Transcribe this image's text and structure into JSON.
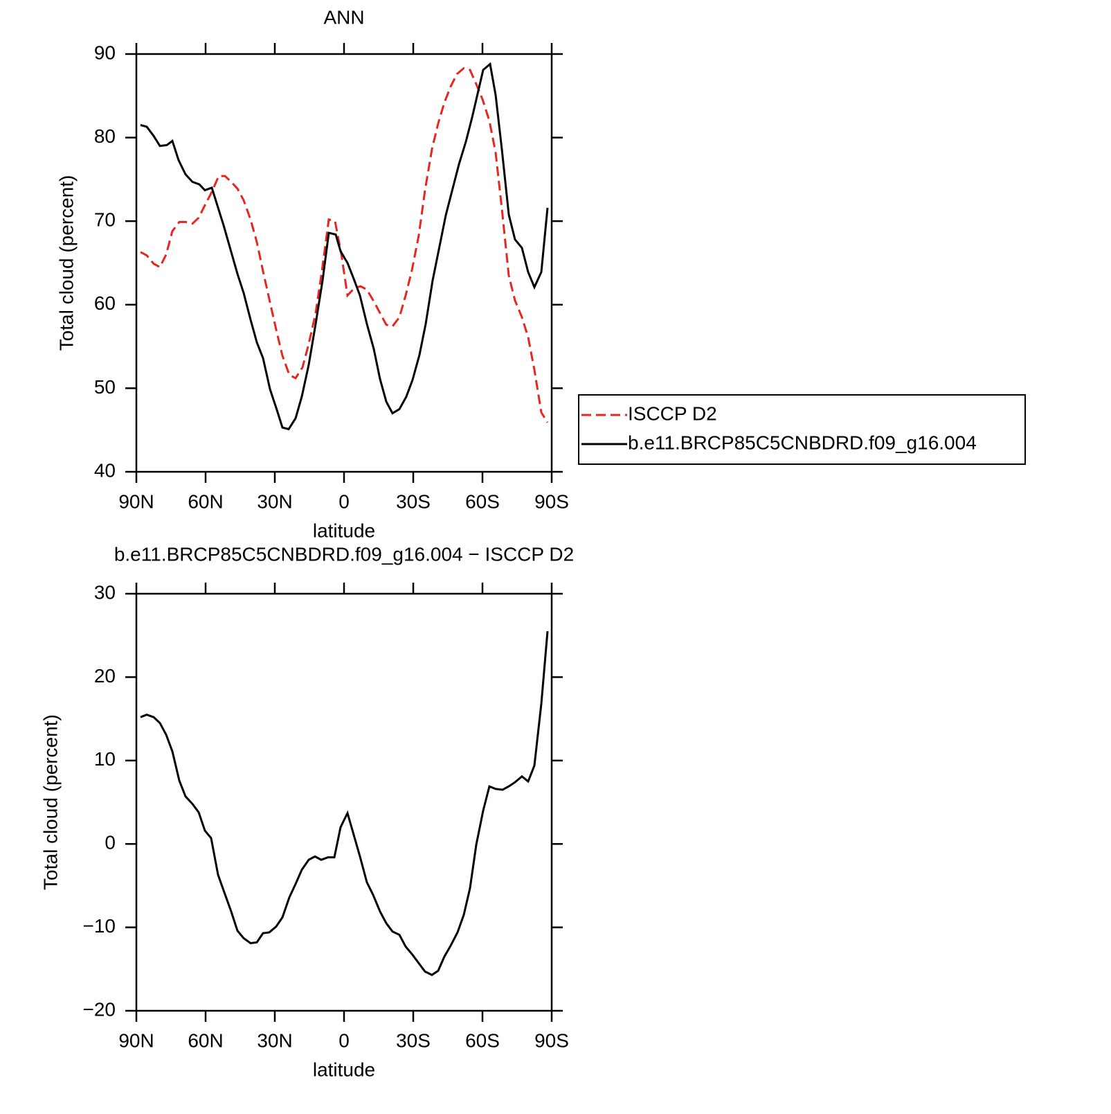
{
  "chart_data": [
    {
      "type": "line",
      "title": "ANN",
      "xlabel": "latitude",
      "ylabel": "Total cloud (percent)",
      "xlim": [
        90,
        -90
      ],
      "xticks": [
        {
          "value": 90,
          "label": "90N"
        },
        {
          "value": 60,
          "label": "60N"
        },
        {
          "value": 30,
          "label": "30N"
        },
        0,
        {
          "value": -30,
          "label": "30S"
        },
        {
          "value": -60,
          "label": "60S"
        },
        {
          "value": -90,
          "label": "90S"
        }
      ],
      "ylim": [
        40,
        90
      ],
      "yticks": [
        40,
        50,
        60,
        70,
        80,
        90
      ],
      "legend": "right",
      "series": [
        {
          "name": "ISCCP D2",
          "color": "#e8251f",
          "linestyle": "dashed",
          "x": [
            88.2,
            85.5,
            82.5,
            79.8,
            77.1,
            74.4,
            71.4,
            68.7,
            65.7,
            63,
            60.3,
            57.3,
            54.3,
            51.6,
            48.9,
            46.2,
            43.5,
            40.5,
            37.8,
            35.1,
            32.1,
            29.4,
            26.7,
            23.7,
            21,
            18,
            15.3,
            12.3,
            9.6,
            6.6,
            3.9,
            1.2,
            -1.5,
            -4.5,
            -7.2,
            -9.9,
            -12.9,
            -15.6,
            -18.3,
            -21,
            -24,
            -26.7,
            -29.4,
            -32.4,
            -35.1,
            -38.1,
            -40.8,
            -43.5,
            -46.2,
            -48.9,
            -51.9,
            -54.6,
            -57.3,
            -60,
            -63,
            -65.7,
            -68.4,
            -71.4,
            -74.1,
            -77.1,
            -79.8,
            -82.5,
            -85.5,
            -88.2
          ],
          "values": [
            66.3,
            65.9,
            64.9,
            64.5,
            66.0,
            68.8,
            69.9,
            69.9,
            69.7,
            70.4,
            71.9,
            73.5,
            75.4,
            75.4,
            74.7,
            73.9,
            72.5,
            70.2,
            67.5,
            64.0,
            60.3,
            57.0,
            53.9,
            51.6,
            51.2,
            52.5,
            55.3,
            59.0,
            64.0,
            70.2,
            70.0,
            66.1,
            61.1,
            62.0,
            62.2,
            61.8,
            60.4,
            59.0,
            57.6,
            57.4,
            58.5,
            61.1,
            64.1,
            68.3,
            73.7,
            78.6,
            81.7,
            84.2,
            86.1,
            87.6,
            88.3,
            88.1,
            86.4,
            84.6,
            82.0,
            78.2,
            71.5,
            63.5,
            60.5,
            58.5,
            56.1,
            52.2,
            47.1,
            45.9
          ]
        },
        {
          "name": "b.e11.BRCP85C5CNBDRD.f09_g16.004",
          "color": "#000000",
          "linestyle": "solid",
          "x": [
            88.2,
            85.5,
            82.5,
            79.8,
            76.8,
            74.4,
            71.7,
            68.7,
            65.7,
            62.7,
            60.3,
            57.3,
            52.2,
            46.2,
            43.5,
            40.5,
            37.8,
            35.1,
            32.1,
            29.1,
            26.7,
            24,
            21,
            18.3,
            15.3,
            12.3,
            9.3,
            6.6,
            3.6,
            1.5,
            -1.5,
            -4.2,
            -6.9,
            -9.9,
            -12.9,
            -15.6,
            -18.3,
            -21,
            -24,
            -27,
            -29.7,
            -32.7,
            -35.4,
            -38.4,
            -44.1,
            -49.8,
            -52.8,
            -55.5,
            -60.3,
            -63.3,
            -65.7,
            -68.4,
            -71.4,
            -74.1,
            -77.1,
            -79.8,
            -82.5,
            -85.5,
            -88.2
          ],
          "values": [
            81.5,
            81.3,
            80.2,
            79.0,
            79.1,
            79.6,
            77.3,
            75.6,
            74.7,
            74.4,
            73.7,
            74.0,
            69.5,
            63.7,
            61.4,
            58.2,
            55.5,
            53.6,
            49.9,
            47.4,
            45.3,
            45.1,
            46.4,
            49.0,
            52.8,
            57.7,
            62.9,
            68.6,
            68.4,
            66.4,
            65.0,
            63.1,
            61.1,
            57.7,
            54.7,
            51.1,
            48.4,
            47.0,
            47.5,
            49.0,
            51.0,
            54.0,
            57.7,
            62.9,
            70.7,
            76.8,
            79.5,
            82.4,
            88.1,
            88.8,
            85.1,
            78.6,
            70.8,
            67.8,
            66.8,
            63.9,
            62.1,
            63.9,
            71.6
          ]
        }
      ]
    },
    {
      "type": "line",
      "title": "b.e11.BRCP85C5CNBDRD.f09_g16.004 − ISCCP D2",
      "xlabel": "latitude",
      "ylabel": "Total cloud (percent)",
      "xlim": [
        90,
        -90
      ],
      "xticks": [
        {
          "value": 90,
          "label": "90N"
        },
        {
          "value": 60,
          "label": "60N"
        },
        {
          "value": 30,
          "label": "30N"
        },
        0,
        {
          "value": -30,
          "label": "30S"
        },
        {
          "value": -60,
          "label": "60S"
        },
        {
          "value": -90,
          "label": "90S"
        }
      ],
      "ylim": [
        -20,
        30
      ],
      "yticks": [
        {
          "value": -20,
          "label": "−20"
        },
        {
          "value": -10,
          "label": "−10"
        },
        0,
        10,
        20,
        30
      ],
      "series": [
        {
          "color": "#000000",
          "linestyle": "solid",
          "x": [
            88.2,
            85.5,
            82.5,
            79.8,
            77.1,
            74.4,
            71.4,
            68.7,
            65.7,
            63,
            60.3,
            57.6,
            54.6,
            51.9,
            48.9,
            46.2,
            43.5,
            40.5,
            37.8,
            35.1,
            32.4,
            29.4,
            26.7,
            23.7,
            21,
            18.3,
            15.3,
            12.6,
            9.9,
            6.9,
            4.2,
            1.5,
            -1.5,
            -4.2,
            -6.9,
            -9.9,
            -12.6,
            -15.6,
            -18.3,
            -21,
            -24,
            -26.7,
            -29.7,
            -32.4,
            -35.1,
            -38.1,
            -40.8,
            -43.5,
            -46.2,
            -49.2,
            -51.9,
            -54.6,
            -57.3,
            -60.3,
            -63,
            -65.7,
            -68.7,
            -71.4,
            -74.1,
            -77.1,
            -79.8,
            -82.5,
            -85.5,
            -88.2
          ],
          "values": [
            15.2,
            15.5,
            15.2,
            14.5,
            13.1,
            11.1,
            7.6,
            5.7,
            4.8,
            3.8,
            1.6,
            0.7,
            -3.7,
            -5.8,
            -8.1,
            -10.4,
            -11.3,
            -11.9,
            -11.8,
            -10.7,
            -10.6,
            -9.9,
            -8.8,
            -6.4,
            -4.8,
            -3.1,
            -1.9,
            -1.5,
            -1.9,
            -1.6,
            -1.6,
            2.0,
            3.7,
            1.1,
            -1.5,
            -4.6,
            -6.1,
            -8.1,
            -9.5,
            -10.5,
            -10.9,
            -12.3,
            -13.3,
            -14.3,
            -15.3,
            -15.7,
            -15.2,
            -13.5,
            -12.2,
            -10.6,
            -8.5,
            -5.3,
            -0.1,
            4.0,
            6.9,
            6.6,
            6.5,
            6.9,
            7.4,
            8.1,
            7.5,
            9.4,
            16.8,
            25.5
          ]
        }
      ]
    }
  ]
}
